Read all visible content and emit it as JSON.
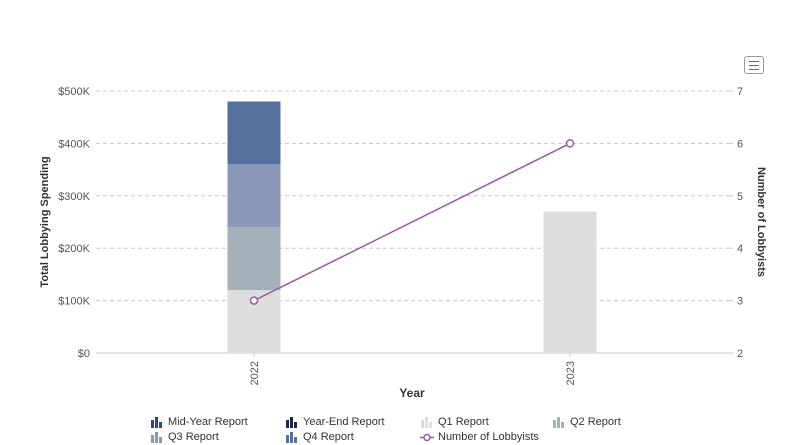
{
  "chart_data": {
    "type": "bar",
    "categories": [
      "2022",
      "2023"
    ],
    "xlabel": "Year",
    "ylabel": "Total Lobbying Spending",
    "y2label": "Number of Lobbyists",
    "ylim": [
      0,
      500000
    ],
    "y2lim": [
      2,
      7
    ],
    "yticks": [
      "$0",
      "$100K",
      "$200K",
      "$300K",
      "$400K",
      "$500K"
    ],
    "y2ticks": [
      "2",
      "3",
      "4",
      "5",
      "6",
      "7"
    ],
    "stacked": true,
    "grid": true,
    "legend_position": "bottom",
    "series": [
      {
        "name": "Q1 Report",
        "type": "bar",
        "color": "#dddddd",
        "values": [
          120000,
          270000
        ]
      },
      {
        "name": "Q2 Report",
        "type": "bar",
        "color": "#a4b0ba",
        "values": [
          120000,
          0
        ]
      },
      {
        "name": "Q3 Report",
        "type": "bar",
        "color": "#8898b6",
        "values": [
          120000,
          0
        ]
      },
      {
        "name": "Q4 Report",
        "type": "bar",
        "color": "#55709d",
        "values": [
          120000,
          0
        ]
      },
      {
        "name": "Number of Lobbyists",
        "type": "line",
        "axis": "right",
        "color": "#9b59a6",
        "values": [
          3,
          6
        ]
      }
    ],
    "legend": [
      {
        "label": "Mid-Year Report",
        "color": "#2f4b7c"
      },
      {
        "label": "Year-End Report",
        "color": "#1b2a4a"
      },
      {
        "label": "Q1 Report",
        "color": "#dddddd"
      },
      {
        "label": "Q2 Report",
        "color": "#a4b0ba"
      },
      {
        "label": "Q3 Report",
        "color": "#8898b6"
      },
      {
        "label": "Q4 Report",
        "color": "#55709d"
      },
      {
        "label": "Number of Lobbyists",
        "color": "#9b59a6",
        "marker": "line-circle"
      }
    ]
  },
  "toolbar": {
    "menu_icon": "hamburger-menu-icon"
  }
}
